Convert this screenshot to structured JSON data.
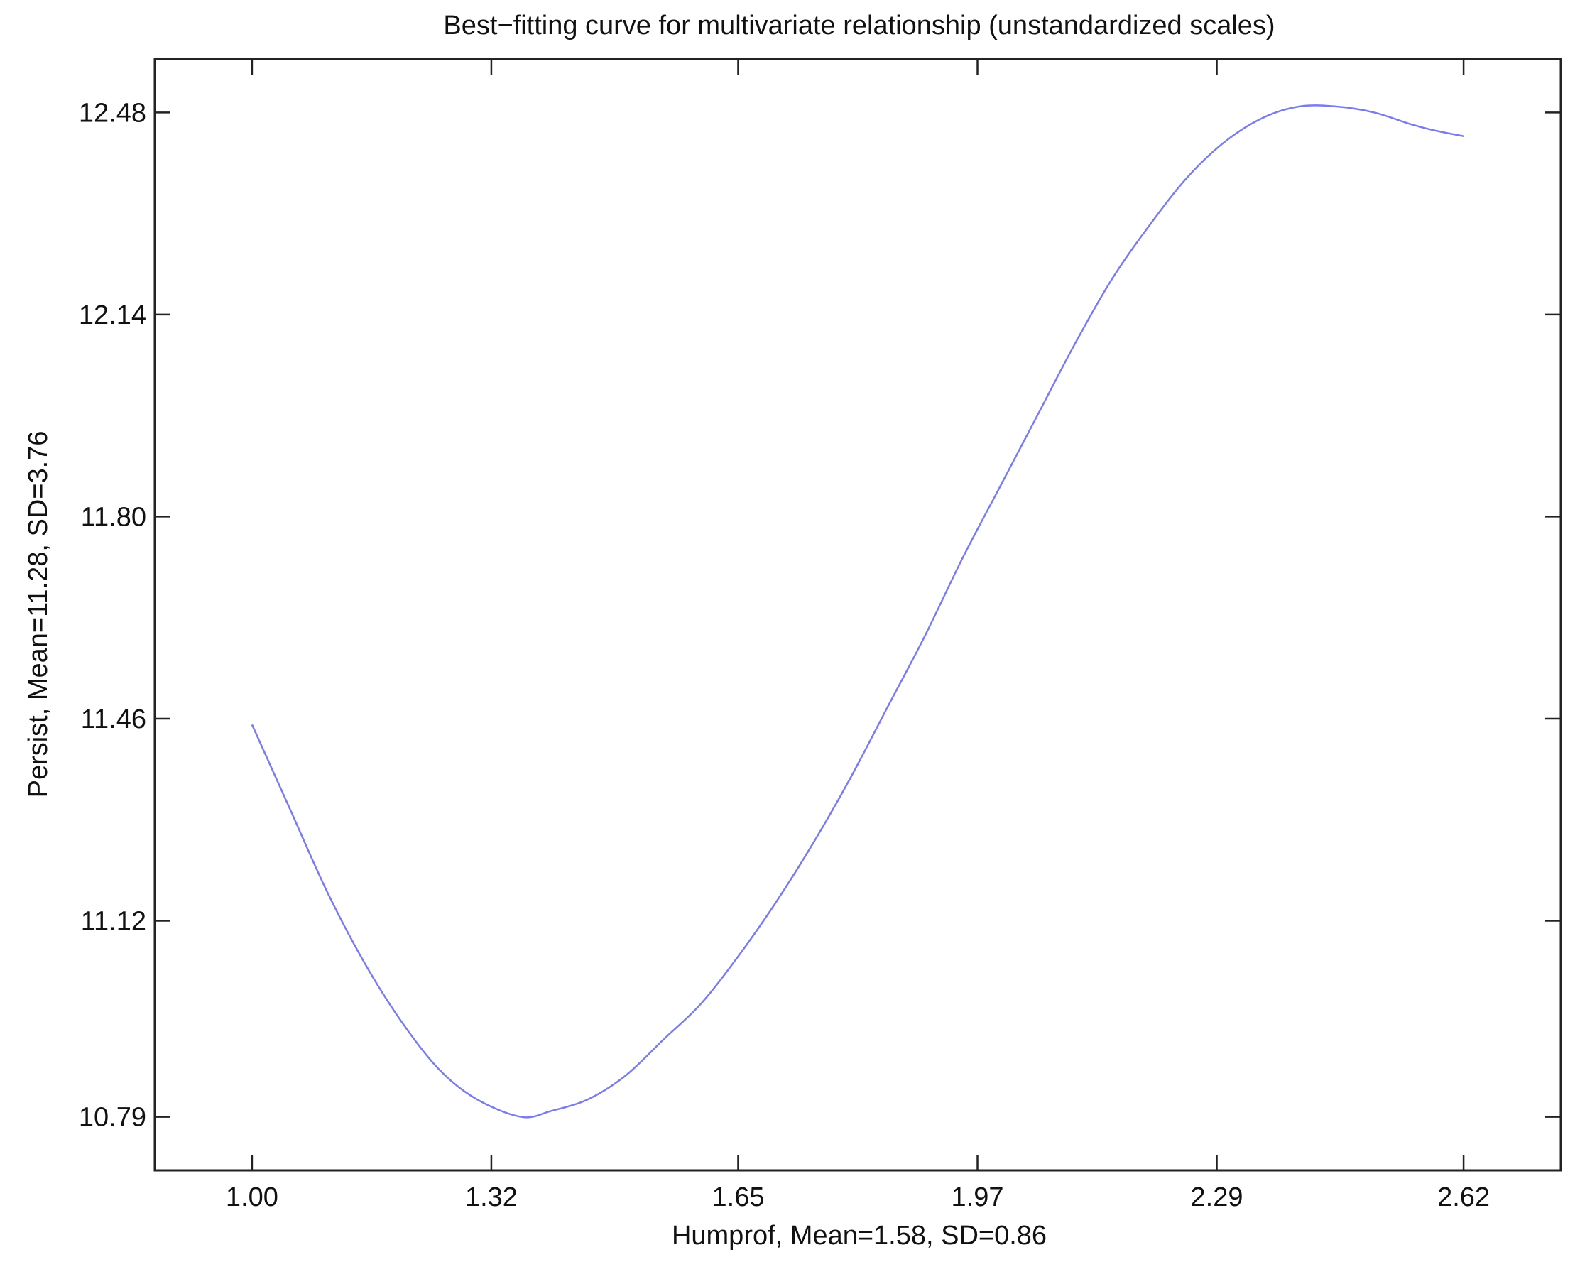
{
  "chart_data": {
    "type": "line",
    "title": "Best−fitting curve for multivariate relationship (unstandardized scales)",
    "xlabel": "Humprof, Mean=1.58, SD=0.86",
    "ylabel": "Persist, Mean=11.28, SD=3.76",
    "xlim": [
      0.87,
      2.75
    ],
    "ylim": [
      10.7,
      12.57
    ],
    "x_ticks": [
      "1.00",
      "1.32",
      "1.65",
      "1.97",
      "2.29",
      "2.62"
    ],
    "y_ticks": [
      "10.79",
      "11.12",
      "11.46",
      "11.80",
      "12.14",
      "12.48"
    ],
    "grid": false,
    "legend": "none",
    "line_color": "#7b7bf0",
    "series": [
      {
        "x": [
          1.0,
          1.05,
          1.1,
          1.15,
          1.2,
          1.25,
          1.3,
          1.36,
          1.4,
          1.45,
          1.5,
          1.55,
          1.6,
          1.65,
          1.7,
          1.75,
          1.8,
          1.85,
          1.9,
          1.95,
          2.0,
          2.05,
          2.1,
          2.15,
          2.2,
          2.25,
          2.3,
          2.35,
          2.4,
          2.45,
          2.5,
          2.55,
          2.58,
          2.62
        ],
        "y": [
          11.45,
          11.31,
          11.17,
          11.05,
          10.95,
          10.87,
          10.82,
          10.79,
          10.8,
          10.82,
          10.86,
          10.92,
          10.98,
          11.06,
          11.15,
          11.25,
          11.36,
          11.48,
          11.6,
          11.73,
          11.85,
          11.97,
          12.09,
          12.2,
          12.29,
          12.37,
          12.43,
          12.47,
          12.49,
          12.49,
          12.48,
          12.46,
          12.45,
          12.44
        ]
      }
    ]
  }
}
